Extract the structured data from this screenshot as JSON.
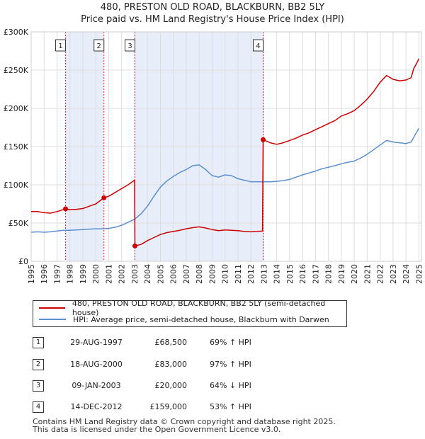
{
  "title_line1": "480, PRESTON OLD ROAD, BLACKBURN, BB2 5LY",
  "title_line2": "Price paid vs. HM Land Registry's House Price Index (HPI)",
  "colors": {
    "price": "#cc0000",
    "hpi": "#5b8fd1",
    "shade": "#e8eef9",
    "grid": "#dddddd"
  },
  "chart_data": {
    "type": "line",
    "ylim": [
      0,
      300000
    ],
    "xlim": [
      1995,
      2025.2
    ],
    "y_ticks": [
      {
        "value": 0,
        "label": "£0"
      },
      {
        "value": 50000,
        "label": "£50K"
      },
      {
        "value": 100000,
        "label": "£100K"
      },
      {
        "value": 150000,
        "label": "£150K"
      },
      {
        "value": 200000,
        "label": "£200K"
      },
      {
        "value": 250000,
        "label": "£250K"
      },
      {
        "value": 300000,
        "label": "£300K"
      }
    ],
    "x_ticks": [
      "1995",
      "1996",
      "1997",
      "1998",
      "1999",
      "2000",
      "2001",
      "2002",
      "2003",
      "2004",
      "2005",
      "2006",
      "2007",
      "2008",
      "2009",
      "2010",
      "2011",
      "2012",
      "2013",
      "2014",
      "2015",
      "2016",
      "2017",
      "2018",
      "2019",
      "2020",
      "2021",
      "2022",
      "2023",
      "2024",
      "2025"
    ],
    "shaded_periods": [
      [
        1997.66,
        2000.63
      ],
      [
        2003.03,
        2012.95
      ]
    ],
    "series": [
      {
        "name": "480, PRESTON OLD ROAD, BLACKBURN, BB2 5LY (semi-detached house)",
        "color": "#cc0000",
        "points": [
          [
            1995.0,
            65000
          ],
          [
            1995.5,
            65000
          ],
          [
            1996.0,
            63500
          ],
          [
            1996.5,
            63000
          ],
          [
            1997.0,
            65000
          ],
          [
            1997.66,
            68500
          ],
          [
            1998.0,
            67500
          ],
          [
            1998.5,
            68000
          ],
          [
            1999.0,
            69000
          ],
          [
            1999.5,
            72000
          ],
          [
            2000.0,
            75000
          ],
          [
            2000.63,
            83000
          ],
          [
            2001.0,
            85000
          ],
          [
            2001.5,
            90000
          ],
          [
            2002.0,
            95000
          ],
          [
            2002.5,
            100000
          ],
          [
            2003.0,
            106000
          ],
          [
            2003.03,
            20000
          ],
          [
            2003.5,
            22000
          ],
          [
            2004.0,
            27000
          ],
          [
            2004.5,
            31000
          ],
          [
            2005.0,
            35000
          ],
          [
            2005.5,
            37500
          ],
          [
            2006.0,
            39000
          ],
          [
            2006.5,
            40500
          ],
          [
            2007.0,
            42500
          ],
          [
            2007.5,
            44000
          ],
          [
            2008.0,
            45000
          ],
          [
            2008.5,
            43500
          ],
          [
            2009.0,
            41500
          ],
          [
            2009.5,
            40000
          ],
          [
            2010.0,
            41000
          ],
          [
            2010.5,
            40500
          ],
          [
            2011.0,
            40000
          ],
          [
            2011.5,
            39000
          ],
          [
            2012.0,
            38500
          ],
          [
            2012.5,
            39000
          ],
          [
            2012.9,
            39500
          ],
          [
            2012.95,
            159000
          ],
          [
            2013.5,
            155000
          ],
          [
            2014.0,
            153000
          ],
          [
            2014.5,
            155000
          ],
          [
            2015.0,
            158000
          ],
          [
            2015.5,
            161000
          ],
          [
            2016.0,
            165000
          ],
          [
            2016.5,
            168000
          ],
          [
            2017.0,
            172000
          ],
          [
            2017.5,
            176000
          ],
          [
            2018.0,
            180000
          ],
          [
            2018.5,
            184000
          ],
          [
            2019.0,
            190000
          ],
          [
            2019.5,
            193000
          ],
          [
            2020.0,
            197000
          ],
          [
            2020.5,
            204000
          ],
          [
            2021.0,
            212000
          ],
          [
            2021.5,
            222000
          ],
          [
            2022.0,
            234000
          ],
          [
            2022.5,
            243000
          ],
          [
            2023.0,
            238000
          ],
          [
            2023.5,
            236000
          ],
          [
            2024.0,
            237000
          ],
          [
            2024.4,
            240000
          ],
          [
            2024.6,
            252000
          ],
          [
            2024.8,
            258000
          ],
          [
            2025.0,
            265000
          ]
        ]
      },
      {
        "name": "HPI: Average price, semi-detached house, Blackburn with Darwen",
        "color": "#5b8fd1",
        "points": [
          [
            1995.0,
            38000
          ],
          [
            1995.5,
            38500
          ],
          [
            1996.0,
            38000
          ],
          [
            1996.5,
            38500
          ],
          [
            1997.0,
            39500
          ],
          [
            1997.5,
            40500
          ],
          [
            1998.0,
            40500
          ],
          [
            1998.5,
            41000
          ],
          [
            1999.0,
            41500
          ],
          [
            1999.5,
            42000
          ],
          [
            2000.0,
            42500
          ],
          [
            2000.5,
            42500
          ],
          [
            2001.0,
            43000
          ],
          [
            2001.5,
            44500
          ],
          [
            2002.0,
            47000
          ],
          [
            2002.5,
            51000
          ],
          [
            2003.0,
            55000
          ],
          [
            2003.5,
            62000
          ],
          [
            2004.0,
            72000
          ],
          [
            2004.5,
            85000
          ],
          [
            2005.0,
            97000
          ],
          [
            2005.5,
            105000
          ],
          [
            2006.0,
            111000
          ],
          [
            2006.5,
            116000
          ],
          [
            2007.0,
            120000
          ],
          [
            2007.5,
            125000
          ],
          [
            2008.0,
            126000
          ],
          [
            2008.5,
            120000
          ],
          [
            2009.0,
            112000
          ],
          [
            2009.5,
            110000
          ],
          [
            2010.0,
            113000
          ],
          [
            2010.5,
            112000
          ],
          [
            2011.0,
            108000
          ],
          [
            2011.5,
            106000
          ],
          [
            2012.0,
            104000
          ],
          [
            2012.5,
            104000
          ],
          [
            2013.0,
            104000
          ],
          [
            2013.5,
            104000
          ],
          [
            2014.0,
            104500
          ],
          [
            2014.5,
            105500
          ],
          [
            2015.0,
            107000
          ],
          [
            2015.5,
            110000
          ],
          [
            2016.0,
            113000
          ],
          [
            2016.5,
            115500
          ],
          [
            2017.0,
            118000
          ],
          [
            2017.5,
            121000
          ],
          [
            2018.0,
            123000
          ],
          [
            2018.5,
            125000
          ],
          [
            2019.0,
            127500
          ],
          [
            2019.5,
            129500
          ],
          [
            2020.0,
            131000
          ],
          [
            2020.5,
            135000
          ],
          [
            2021.0,
            140000
          ],
          [
            2021.5,
            146000
          ],
          [
            2022.0,
            152000
          ],
          [
            2022.5,
            158000
          ],
          [
            2023.0,
            156000
          ],
          [
            2023.5,
            155000
          ],
          [
            2024.0,
            154000
          ],
          [
            2024.4,
            156000
          ],
          [
            2024.7,
            165000
          ],
          [
            2025.0,
            174000
          ]
        ]
      }
    ],
    "markers": [
      {
        "id": "1",
        "label": "1",
        "x": 1997.66,
        "y": 68500
      },
      {
        "id": "2",
        "label": "2",
        "x": 2000.63,
        "y": 83000
      },
      {
        "id": "3",
        "label": "3",
        "x": 2003.03,
        "y": 20000
      },
      {
        "id": "4",
        "label": "4",
        "x": 2012.95,
        "y": 159000
      }
    ]
  },
  "legend": {
    "price_label": "480, PRESTON OLD ROAD, BLACKBURN, BB2 5LY (semi-detached house)",
    "hpi_label": "HPI: Average price, semi-detached house, Blackburn with Darwen"
  },
  "transactions": [
    {
      "num": "1",
      "date": "29-AUG-1997",
      "price": "£68,500",
      "hpi": "69% ↑ HPI"
    },
    {
      "num": "2",
      "date": "18-AUG-2000",
      "price": "£83,000",
      "hpi": "97% ↑ HPI"
    },
    {
      "num": "3",
      "date": "09-JAN-2003",
      "price": "£20,000",
      "hpi": "64% ↓ HPI"
    },
    {
      "num": "4",
      "date": "14-DEC-2012",
      "price": "£159,000",
      "hpi": "53% ↑ HPI"
    }
  ],
  "footer": {
    "line1": "Contains HM Land Registry data © Crown copyright and database right 2025.",
    "line2": "This data is licensed under the Open Government Licence v3.0."
  }
}
